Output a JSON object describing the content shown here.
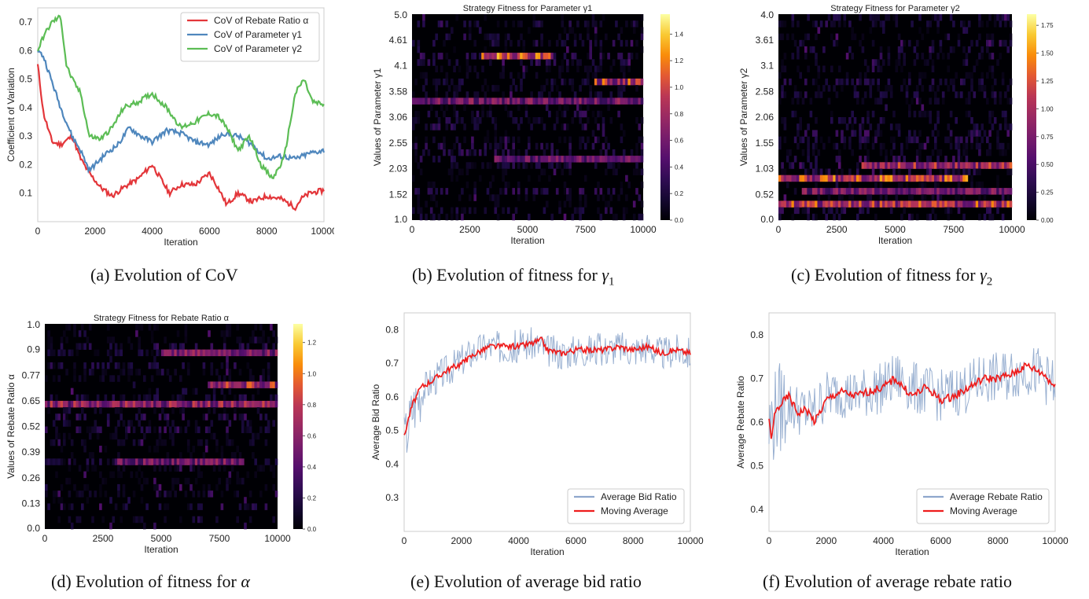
{
  "captions": {
    "a": "(a) Evolution of CoV",
    "b_prefix": "(b) Evolution of fitness for ",
    "b_sym": "γ",
    "b_sub": "1",
    "c_prefix": "(c) Evolution of fitness for ",
    "c_sym": "γ",
    "c_sub": "2",
    "d_prefix": "(d) Evolution of fitness for ",
    "d_sym": "α",
    "e": "(e) Evolution of average bid ratio",
    "f": "(f) Evolution of average rebate ratio"
  },
  "colors": {
    "red": "#e3363a",
    "blue": "#4f87bd",
    "green": "#5cbd55",
    "bidNoise": "#8ea7cc",
    "movingAvg": "#ee1c1c"
  },
  "chart_data": [
    {
      "id": "a",
      "type": "line",
      "title": "",
      "xlabel": "Iteration",
      "ylabel": "Coefficient of Variation",
      "xlim": [
        0,
        10000
      ],
      "ylim": [
        0.0,
        0.75
      ],
      "xticks": [
        "0",
        "2000",
        "4000",
        "6000",
        "8000",
        "10000"
      ],
      "yticks": [
        "0.1",
        "0.2",
        "0.3",
        "0.4",
        "0.5",
        "0.6",
        "0.7"
      ],
      "grid": false,
      "legend": "top-right",
      "series": [
        {
          "name": "CoV of Rebate Ratio α",
          "color": "#e3363a",
          "x": [
            0,
            200,
            500,
            800,
            1200,
            1500,
            1800,
            2200,
            2600,
            3000,
            3500,
            4000,
            4300,
            4600,
            5000,
            5500,
            6000,
            6300,
            6600,
            7000,
            7500,
            8000,
            8500,
            9000,
            9200,
            9500,
            10000
          ],
          "y": [
            0.55,
            0.38,
            0.28,
            0.27,
            0.3,
            0.22,
            0.17,
            0.12,
            0.09,
            0.12,
            0.15,
            0.2,
            0.15,
            0.1,
            0.13,
            0.13,
            0.17,
            0.12,
            0.06,
            0.1,
            0.07,
            0.09,
            0.08,
            0.05,
            0.08,
            0.1,
            0.11
          ]
        },
        {
          "name": "CoV of Parameter γ1",
          "color": "#4f87bd",
          "x": [
            0,
            200,
            400,
            600,
            800,
            1000,
            1200,
            1500,
            1800,
            2000,
            2400,
            2800,
            3200,
            3600,
            4000,
            4500,
            5000,
            5500,
            6000,
            6500,
            7000,
            7500,
            8000,
            8500,
            9000,
            9500,
            10000
          ],
          "y": [
            0.6,
            0.58,
            0.52,
            0.46,
            0.4,
            0.35,
            0.3,
            0.25,
            0.18,
            0.2,
            0.24,
            0.27,
            0.33,
            0.3,
            0.28,
            0.32,
            0.31,
            0.28,
            0.27,
            0.31,
            0.3,
            0.27,
            0.22,
            0.23,
            0.22,
            0.24,
            0.25
          ]
        },
        {
          "name": "CoV of Parameter γ2",
          "color": "#5cbd55",
          "x": [
            0,
            200,
            500,
            800,
            1000,
            1200,
            1500,
            1800,
            2200,
            2600,
            3000,
            3500,
            4000,
            4500,
            5000,
            5500,
            6000,
            6300,
            6600,
            7000,
            7400,
            7800,
            8200,
            8600,
            9000,
            9300,
            9600,
            10000
          ],
          "y": [
            0.6,
            0.65,
            0.7,
            0.72,
            0.55,
            0.5,
            0.45,
            0.3,
            0.29,
            0.33,
            0.4,
            0.42,
            0.45,
            0.4,
            0.33,
            0.35,
            0.38,
            0.37,
            0.33,
            0.25,
            0.3,
            0.2,
            0.15,
            0.22,
            0.45,
            0.5,
            0.42,
            0.41
          ]
        }
      ]
    },
    {
      "id": "b",
      "type": "heatmap",
      "title": "Strategy Fitness for Parameter γ1",
      "xlabel": "Iteration",
      "ylabel": "Values of Parameter γ1",
      "xticks": [
        "0",
        "2500",
        "5000",
        "7500",
        "10000"
      ],
      "yticks": [
        "5.0",
        "4.61",
        "4.1",
        "3.58",
        "3.06",
        "2.55",
        "2.03",
        "1.52",
        "1.0"
      ],
      "colorbar_ticks": [
        "0.0",
        "0.2",
        "0.4",
        "0.6",
        "0.8",
        "1.0",
        "1.2",
        "1.4"
      ],
      "colorbar_max": 1.55,
      "rows": 32,
      "bright_rows": [
        {
          "row": 6,
          "level": 0.9,
          "from": 0.3,
          "to": 0.6
        },
        {
          "row": 10,
          "level": 0.8,
          "from": 0.78,
          "to": 1.0
        },
        {
          "row": 13,
          "level": 0.55,
          "from": 0.0,
          "to": 1.0
        },
        {
          "row": 22,
          "level": 0.5,
          "from": 0.35,
          "to": 1.0
        }
      ]
    },
    {
      "id": "c",
      "type": "heatmap",
      "title": "Strategy Fitness for Parameter γ2",
      "xlabel": "Iteration",
      "ylabel": "Values of Parameter γ2",
      "xticks": [
        "0",
        "2500",
        "5000",
        "7500",
        "10000"
      ],
      "yticks": [
        "4.0",
        "3.61",
        "3.1",
        "2.58",
        "2.06",
        "1.55",
        "1.03",
        "0.52",
        "0.0"
      ],
      "colorbar_ticks": [
        "0.00",
        "0.25",
        "0.50",
        "0.75",
        "1.00",
        "1.25",
        "1.50",
        "1.75"
      ],
      "colorbar_max": 1.85,
      "rows": 32,
      "bright_rows": [
        {
          "row": 23,
          "level": 0.75,
          "from": 0.35,
          "to": 1.0
        },
        {
          "row": 25,
          "level": 0.85,
          "from": 0.0,
          "to": 0.8
        },
        {
          "row": 27,
          "level": 0.55,
          "from": 0.1,
          "to": 1.0
        },
        {
          "row": 29,
          "level": 0.8,
          "from": 0.0,
          "to": 1.0
        }
      ]
    },
    {
      "id": "d",
      "type": "heatmap",
      "title": "Strategy Fitness for Rebate Ratio α",
      "xlabel": "Iteration",
      "ylabel": "Values of Rebate Ratio α",
      "xticks": [
        "0",
        "2500",
        "5000",
        "7500",
        "10000"
      ],
      "yticks": [
        "1.0",
        "0.9",
        "0.77",
        "0.65",
        "0.52",
        "0.39",
        "0.26",
        "0.13",
        "0.0"
      ],
      "colorbar_ticks": [
        "0.0",
        "0.2",
        "0.4",
        "0.6",
        "0.8",
        "1.0",
        "1.2"
      ],
      "colorbar_max": 1.32,
      "rows": 32,
      "bright_rows": [
        {
          "row": 4,
          "level": 0.6,
          "from": 0.5,
          "to": 1.0
        },
        {
          "row": 9,
          "level": 0.75,
          "from": 0.7,
          "to": 1.0
        },
        {
          "row": 12,
          "level": 0.65,
          "from": 0.0,
          "to": 1.0
        },
        {
          "row": 21,
          "level": 0.55,
          "from": 0.3,
          "to": 0.85
        }
      ]
    },
    {
      "id": "e",
      "type": "line",
      "title": "",
      "xlabel": "Iteration",
      "ylabel": "Average Bid Ratio",
      "xlim": [
        0,
        10000
      ],
      "ylim": [
        0.2,
        0.85
      ],
      "xticks": [
        "0",
        "2000",
        "4000",
        "6000",
        "8000",
        "10000"
      ],
      "yticks": [
        "0.3",
        "0.4",
        "0.5",
        "0.6",
        "0.7",
        "0.8"
      ],
      "grid": false,
      "legend": "bottom-right",
      "series": [
        {
          "name": "Average Bid Ratio",
          "color": "#8ea7cc",
          "noise": 0.05,
          "x": [
            0,
            100,
            300,
            600,
            1000,
            1500,
            2000,
            2500,
            3000,
            3500,
            4000,
            4500,
            5000,
            5500,
            6000,
            6500,
            7000,
            7500,
            8000,
            8500,
            9000,
            9500,
            10000
          ],
          "y": [
            0.47,
            0.5,
            0.57,
            0.62,
            0.65,
            0.68,
            0.71,
            0.74,
            0.75,
            0.75,
            0.75,
            0.76,
            0.74,
            0.73,
            0.74,
            0.74,
            0.74,
            0.75,
            0.74,
            0.75,
            0.73,
            0.74,
            0.73
          ]
        },
        {
          "name": "Moving Average",
          "color": "#ee1c1c",
          "x": [
            0,
            100,
            300,
            600,
            1000,
            1500,
            2000,
            2500,
            3000,
            3500,
            4000,
            4500,
            4800,
            5000,
            5500,
            6000,
            6500,
            7000,
            7500,
            8000,
            8500,
            9000,
            9500,
            10000
          ],
          "y": [
            0.48,
            0.52,
            0.58,
            0.63,
            0.65,
            0.68,
            0.7,
            0.73,
            0.75,
            0.75,
            0.75,
            0.76,
            0.77,
            0.74,
            0.73,
            0.74,
            0.74,
            0.74,
            0.75,
            0.74,
            0.75,
            0.73,
            0.74,
            0.73
          ]
        }
      ]
    },
    {
      "id": "f",
      "type": "line",
      "title": "",
      "xlabel": "Iteration",
      "ylabel": "Average Rebate Ratio",
      "xlim": [
        0,
        10000
      ],
      "ylim": [
        0.35,
        0.85
      ],
      "xticks": [
        "0",
        "2000",
        "4000",
        "6000",
        "8000",
        "10000"
      ],
      "yticks": [
        "0.4",
        "0.5",
        "0.6",
        "0.7",
        "0.8"
      ],
      "grid": false,
      "legend": "bottom-right",
      "series": [
        {
          "name": "Average Rebate Ratio",
          "color": "#8ea7cc",
          "noise": 0.06,
          "x": [
            0,
            100,
            300,
            600,
            1000,
            1500,
            2000,
            2500,
            3000,
            3500,
            4000,
            4500,
            5000,
            5500,
            6000,
            6500,
            7000,
            7500,
            8000,
            8500,
            9000,
            9500,
            10000
          ],
          "y": [
            0.58,
            0.6,
            0.63,
            0.64,
            0.63,
            0.62,
            0.66,
            0.67,
            0.66,
            0.67,
            0.68,
            0.7,
            0.68,
            0.67,
            0.66,
            0.67,
            0.68,
            0.7,
            0.7,
            0.71,
            0.72,
            0.71,
            0.68
          ]
        },
        {
          "name": "Moving Average",
          "color": "#ee1c1c",
          "x": [
            0,
            100,
            200,
            400,
            700,
            1000,
            1300,
            1600,
            2000,
            2500,
            3000,
            3500,
            4000,
            4400,
            4700,
            5000,
            5500,
            6000,
            6500,
            7000,
            7500,
            8000,
            8500,
            9000,
            9300,
            9600,
            10000
          ],
          "y": [
            0.6,
            0.56,
            0.62,
            0.64,
            0.66,
            0.62,
            0.63,
            0.6,
            0.65,
            0.67,
            0.66,
            0.67,
            0.68,
            0.7,
            0.68,
            0.66,
            0.68,
            0.65,
            0.66,
            0.68,
            0.7,
            0.7,
            0.71,
            0.73,
            0.72,
            0.71,
            0.68
          ]
        }
      ]
    }
  ]
}
